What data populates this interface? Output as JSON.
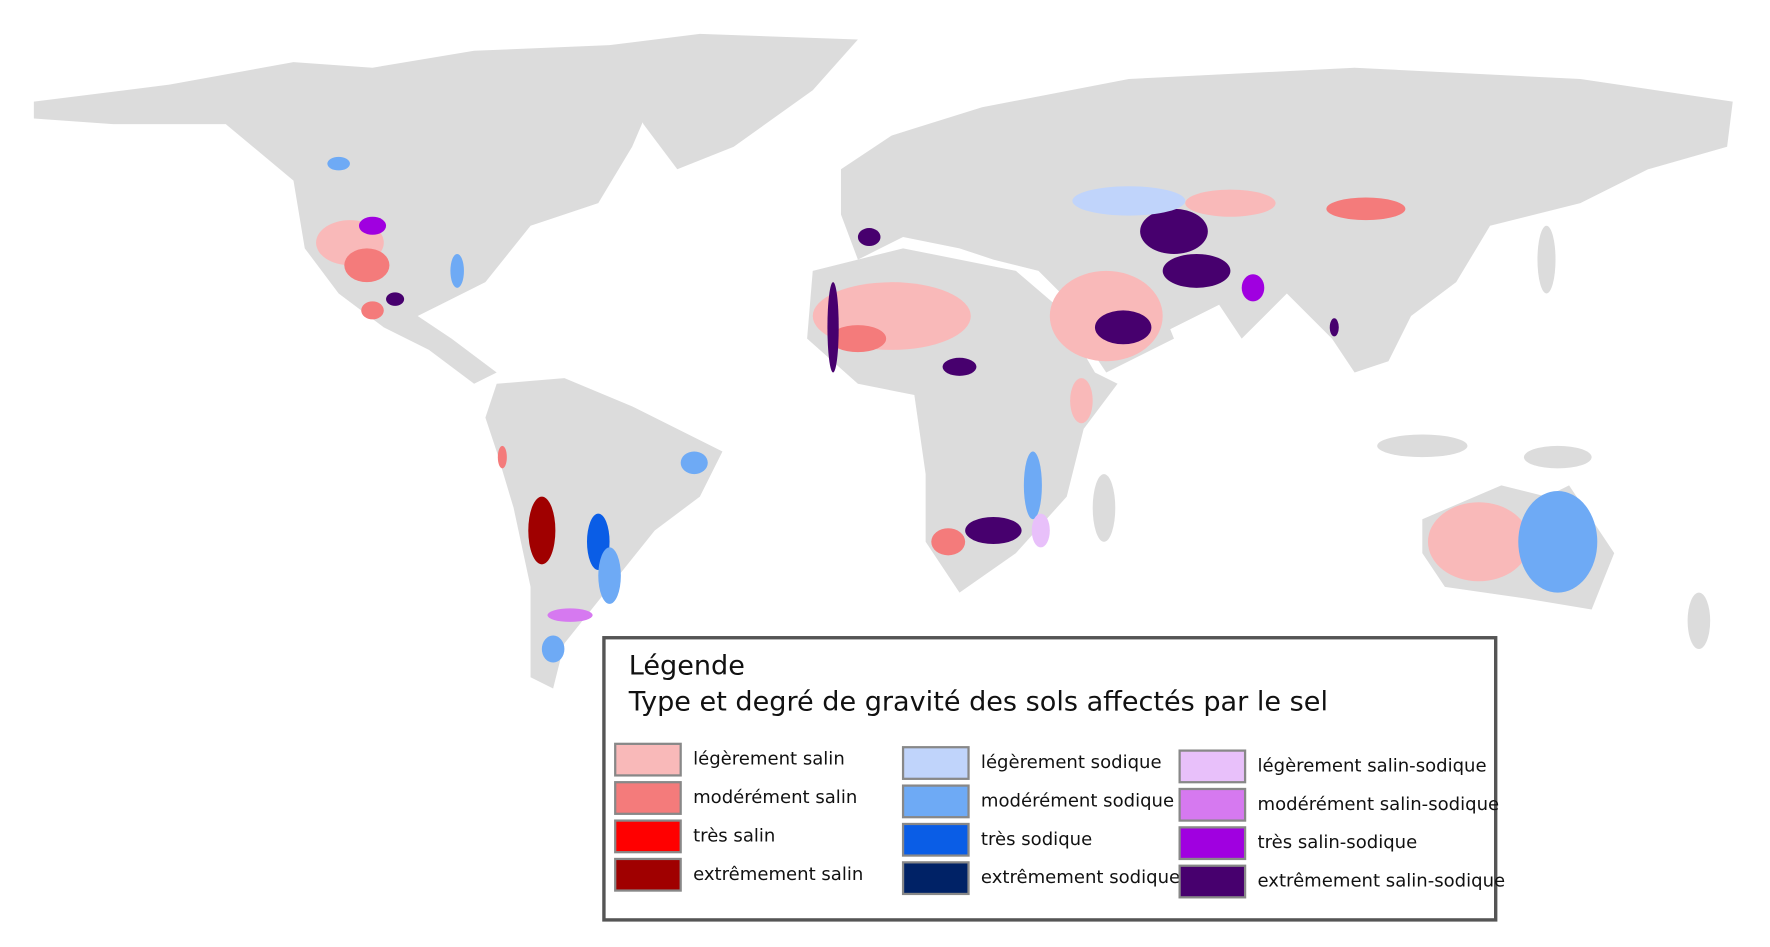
{
  "legend": {
    "title": "Légende",
    "subtitle": "Type et degré de gravité des sols affectés par le sel",
    "items": [
      {
        "label": "légèrement salin",
        "color": "#f9b9b9"
      },
      {
        "label": "modérément salin",
        "color": "#f47b7b"
      },
      {
        "label": "très salin",
        "color": "#ff0000"
      },
      {
        "label": "extrêmement salin",
        "color": "#a00000"
      },
      {
        "label": "légèrement sodique",
        "color": "#c0d4fb"
      },
      {
        "label": "modérément sodique",
        "color": "#6eaaf5"
      },
      {
        "label": "très sodique",
        "color": "#0a5de6"
      },
      {
        "label": "extrêmement sodique",
        "color": "#002266"
      },
      {
        "label": "légèrement salin-sodique",
        "color": "#e8c0fa"
      },
      {
        "label": "modérément salin-sodique",
        "color": "#d679f0"
      },
      {
        "label": "très salin-sodique",
        "color": "#a000e0"
      },
      {
        "label": "extrêmement salin-sodique",
        "color": "#47006e"
      }
    ]
  }
}
